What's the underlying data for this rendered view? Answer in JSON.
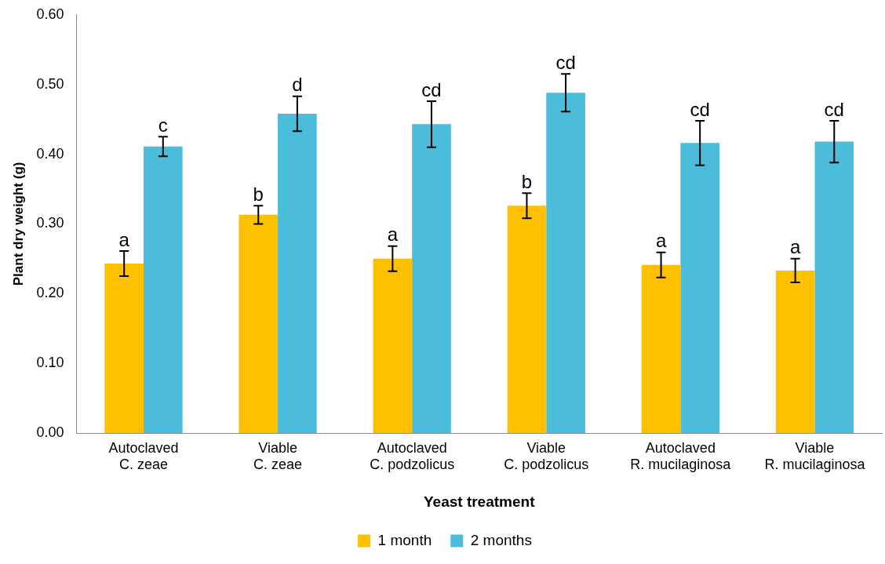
{
  "chart_data": {
    "type": "bar",
    "xlabel": "Yeast treatment",
    "ylabel": "Plant dry weight (g)",
    "categories": [
      "Autoclaved C. zeae",
      "Viable C. zeae",
      "Autoclaved C. podzolicus",
      "Viable C. podzolicus",
      "Autoclaved R. mucilaginosa",
      "Viable R. mucilaginosa"
    ],
    "series": [
      {
        "name": "1 month",
        "color": "#ffc000",
        "values": [
          0.243,
          0.313,
          0.25,
          0.326,
          0.241,
          0.233
        ],
        "errors": [
          0.018,
          0.013,
          0.018,
          0.018,
          0.018,
          0.017
        ]
      },
      {
        "name": "2 months",
        "color": "#4bbcd9",
        "values": [
          0.411,
          0.458,
          0.443,
          0.488,
          0.416,
          0.418
        ],
        "errors": [
          0.014,
          0.025,
          0.033,
          0.027,
          0.032,
          0.03
        ]
      }
    ],
    "ylim": [
      0,
      0.6
    ],
    "yticks": [
      {
        "value": 0,
        "label": "0.00"
      },
      {
        "value": 0.1,
        "label": "0.10"
      },
      {
        "value": 0.2,
        "label": "0.20"
      },
      {
        "value": 0.3,
        "label": "0.30"
      },
      {
        "value": 0.4,
        "label": "0.40"
      },
      {
        "value": 0.5,
        "label": "0.50"
      },
      {
        "value": 0.6,
        "label": "0.60"
      }
    ],
    "grid": false,
    "legend": "bottom",
    "annotations": [
      {
        "text": "a",
        "x": "Autoclaved C. zeae",
        "y": 0.243
      },
      {
        "text": "c",
        "x": "Autoclaved C. zeae",
        "y": 0.411
      },
      {
        "text": "b",
        "x": "Viable C. zeae",
        "y": 0.313
      },
      {
        "text": "d",
        "x": "Viable C. zeae",
        "y": 0.458
      },
      {
        "text": "a",
        "x": "Autoclaved C. podzolicus",
        "y": 0.25
      },
      {
        "text": "cd",
        "x": "Autoclaved C. podzolicus",
        "y": 0.443
      },
      {
        "text": "b",
        "x": "Viable C. podzolicus",
        "y": 0.326
      },
      {
        "text": "cd",
        "x": "Viable C. podzolicus",
        "y": 0.488
      },
      {
        "text": "a",
        "x": "Autoclaved R. mucilaginosa",
        "y": 0.241
      },
      {
        "text": "cd",
        "x": "Autoclaved R. mucilaginosa",
        "y": 0.416
      },
      {
        "text": "a",
        "x": "Viable R. mucilaginosa",
        "y": 0.233
      },
      {
        "text": "cd",
        "x": "Viable R. mucilaginosa",
        "y": 0.418
      }
    ]
  }
}
